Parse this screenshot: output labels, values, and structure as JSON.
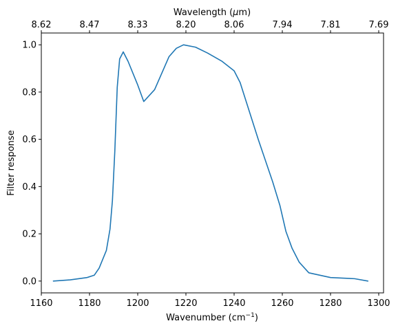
{
  "chart_data": {
    "type": "line",
    "xlabel": "Wavenumber (cm",
    "xlabel_sup": "−1",
    "xlabel_end": ")",
    "top_xlabel": "Wavelength (",
    "top_xlabel_mu": "μ",
    "top_xlabel_end": "m)",
    "ylabel": "Filter response",
    "xlim": [
      1160,
      1302
    ],
    "ylim": [
      -0.05,
      1.05
    ],
    "x_ticks": [
      1160,
      1180,
      1200,
      1220,
      1240,
      1260,
      1280,
      1300
    ],
    "x_tick_labels": [
      "1160",
      "1180",
      "1200",
      "1220",
      "1240",
      "1260",
      "1280",
      "1300"
    ],
    "y_ticks": [
      0.0,
      0.2,
      0.4,
      0.6,
      0.8,
      1.0
    ],
    "y_tick_labels": [
      "0.0",
      "0.2",
      "0.4",
      "0.6",
      "0.8",
      "1.0"
    ],
    "top_ticks_at_wavenumber": [
      1160,
      1180,
      1200,
      1220,
      1240,
      1260,
      1280,
      1300
    ],
    "top_tick_labels": [
      "8.62",
      "8.47",
      "8.33",
      "8.20",
      "8.06",
      "7.94",
      "7.81",
      "7.69"
    ],
    "grid": false,
    "series": [
      {
        "color": "#1f77b4",
        "x": [
          1165,
          1172,
          1179,
          1182,
          1184,
          1187,
          1188.5,
          1189.5,
          1190.5,
          1191.5,
          1192.5,
          1194,
          1196,
          1200,
          1202.5,
          1207,
          1213,
          1216,
          1219,
          1224,
          1229,
          1235,
          1240,
          1242.5,
          1245,
          1250,
          1256,
          1259,
          1261.5,
          1264,
          1267,
          1271,
          1280,
          1290,
          1295.5
        ],
        "y": [
          0.0,
          0.005,
          0.015,
          0.025,
          0.055,
          0.13,
          0.22,
          0.34,
          0.55,
          0.82,
          0.94,
          0.97,
          0.93,
          0.83,
          0.76,
          0.81,
          0.95,
          0.985,
          1.0,
          0.99,
          0.965,
          0.93,
          0.89,
          0.84,
          0.76,
          0.6,
          0.42,
          0.32,
          0.21,
          0.14,
          0.08,
          0.035,
          0.015,
          0.01,
          0.0
        ]
      }
    ]
  }
}
